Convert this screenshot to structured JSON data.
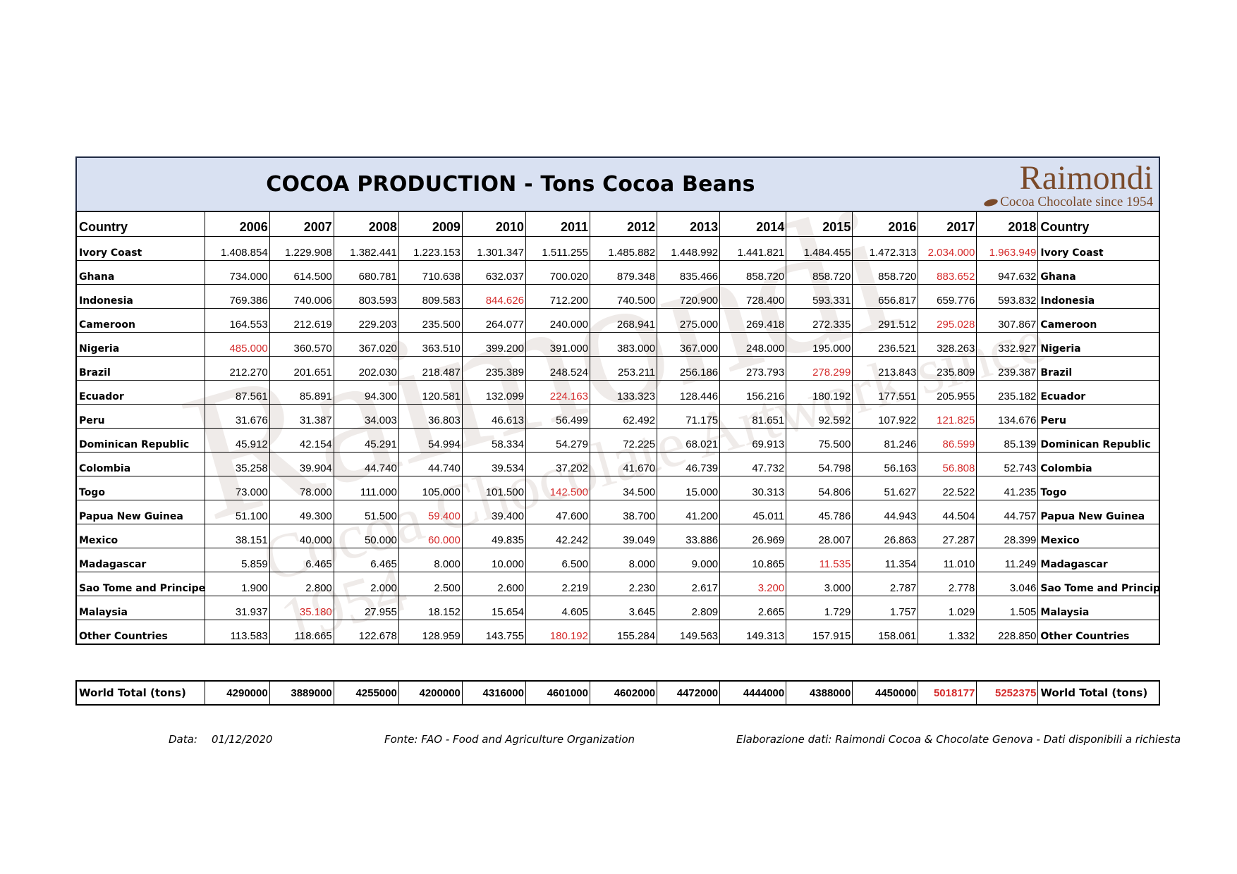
{
  "title": "COCOA PRODUCTION  - Tons Cocoa Beans",
  "logo": {
    "name": "Raimondi",
    "tagline": "Cocoa Chocolate since 1954"
  },
  "watermark": {
    "big": "Raimondi",
    "small": "Cocoa Chocolate Artwork since 1954"
  },
  "table": {
    "country_header": "Country",
    "years": [
      "2006",
      "2007",
      "2008",
      "2009",
      "2010",
      "2011",
      "2012",
      "2013",
      "2014",
      "2015",
      "2016",
      "2017",
      "2018"
    ],
    "rows": [
      {
        "country": "Ivory Coast",
        "values": [
          "1.408.854",
          "1.229.908",
          "1.382.441",
          "1.223.153",
          "1.301.347",
          "1.511.255",
          "1.485.882",
          "1.448.992",
          "1.441.821",
          "1.484.455",
          "1.472.313",
          "2.034.000",
          "1.963.949"
        ],
        "red": [
          11,
          12
        ]
      },
      {
        "country": "Ghana",
        "values": [
          "734.000",
          "614.500",
          "680.781",
          "710.638",
          "632.037",
          "700.020",
          "879.348",
          "835.466",
          "858.720",
          "858.720",
          "858.720",
          "883.652",
          "947.632"
        ],
        "red": [
          11
        ]
      },
      {
        "country": "Indonesia",
        "values": [
          "769.386",
          "740.006",
          "803.593",
          "809.583",
          "844.626",
          "712.200",
          "740.500",
          "720.900",
          "728.400",
          "593.331",
          "656.817",
          "659.776",
          "593.832"
        ],
        "red": [
          4
        ]
      },
      {
        "country": "Cameroon",
        "values": [
          "164.553",
          "212.619",
          "229.203",
          "235.500",
          "264.077",
          "240.000",
          "268.941",
          "275.000",
          "269.418",
          "272.335",
          "291.512",
          "295.028",
          "307.867"
        ],
        "red": [
          11
        ]
      },
      {
        "country": "Nigeria",
        "values": [
          "485.000",
          "360.570",
          "367.020",
          "363.510",
          "399.200",
          "391.000",
          "383.000",
          "367.000",
          "248.000",
          "195.000",
          "236.521",
          "328.263",
          "332.927"
        ],
        "red": [
          0
        ]
      },
      {
        "country": "Brazil",
        "values": [
          "212.270",
          "201.651",
          "202.030",
          "218.487",
          "235.389",
          "248.524",
          "253.211",
          "256.186",
          "273.793",
          "278.299",
          "213.843",
          "235.809",
          "239.387"
        ],
        "red": [
          9
        ]
      },
      {
        "country": "Ecuador",
        "values": [
          "87.561",
          "85.891",
          "94.300",
          "120.581",
          "132.099",
          "224.163",
          "133.323",
          "128.446",
          "156.216",
          "180.192",
          "177.551",
          "205.955",
          "235.182"
        ],
        "red": [
          5
        ]
      },
      {
        "country": "Peru",
        "values": [
          "31.676",
          "31.387",
          "34.003",
          "36.803",
          "46.613",
          "56.499",
          "62.492",
          "71.175",
          "81.651",
          "92.592",
          "107.922",
          "121.825",
          "134.676"
        ],
        "red": [
          11
        ]
      },
      {
        "country": "Dominican Republic",
        "values": [
          "45.912",
          "42.154",
          "45.291",
          "54.994",
          "58.334",
          "54.279",
          "72.225",
          "68.021",
          "69.913",
          "75.500",
          "81.246",
          "86.599",
          "85.139"
        ],
        "red": [
          11
        ]
      },
      {
        "country": "Colombia",
        "values": [
          "35.258",
          "39.904",
          "44.740",
          "44.740",
          "39.534",
          "37.202",
          "41.670",
          "46.739",
          "47.732",
          "54.798",
          "56.163",
          "56.808",
          "52.743"
        ],
        "red": [
          11
        ]
      },
      {
        "country": "Togo",
        "values": [
          "73.000",
          "78.000",
          "111.000",
          "105.000",
          "101.500",
          "142.500",
          "34.500",
          "15.000",
          "30.313",
          "54.806",
          "51.627",
          "22.522",
          "41.235"
        ],
        "red": [
          5
        ]
      },
      {
        "country": "Papua New Guinea",
        "values": [
          "51.100",
          "49.300",
          "51.500",
          "59.400",
          "39.400",
          "47.600",
          "38.700",
          "41.200",
          "45.011",
          "45.786",
          "44.943",
          "44.504",
          "44.757"
        ],
        "red": [
          3
        ]
      },
      {
        "country": "Mexico",
        "values": [
          "38.151",
          "40.000",
          "50.000",
          "60.000",
          "49.835",
          "42.242",
          "39.049",
          "33.886",
          "26.969",
          "28.007",
          "26.863",
          "27.287",
          "28.399"
        ],
        "red": [
          3
        ]
      },
      {
        "country": "Madagascar",
        "values": [
          "5.859",
          "6.465",
          "6.465",
          "8.000",
          "10.000",
          "6.500",
          "8.000",
          "9.000",
          "10.865",
          "11.535",
          "11.354",
          "11.010",
          "11.249"
        ],
        "red": [
          9
        ]
      },
      {
        "country": "Sao Tome and Principe",
        "values": [
          "1.900",
          "2.800",
          "2.000",
          "2.500",
          "2.600",
          "2.219",
          "2.230",
          "2.617",
          "3.200",
          "3.000",
          "2.787",
          "2.778",
          "3.046"
        ],
        "red": [
          8
        ]
      },
      {
        "country": "Malaysia",
        "values": [
          "31.937",
          "35.180",
          "27.955",
          "18.152",
          "15.654",
          "4.605",
          "3.645",
          "2.809",
          "2.665",
          "1.729",
          "1.757",
          "1.029",
          "1.505"
        ],
        "red": [
          1
        ]
      },
      {
        "country": "Other Countries",
        "values": [
          "113.583",
          "118.665",
          "122.678",
          "128.959",
          "143.755",
          "180.192",
          "155.284",
          "149.563",
          "149.313",
          "157.915",
          "158.061",
          "1.332",
          "228.850"
        ],
        "red": [
          5
        ]
      }
    ]
  },
  "total": {
    "label": "World Total (tons)",
    "values": [
      "4290000",
      "3889000",
      "4255000",
      "4200000",
      "4316000",
      "4601000",
      "4602000",
      "4472000",
      "4444000",
      "4388000",
      "4450000",
      "5018177",
      "5252375"
    ],
    "red": [
      11,
      12
    ]
  },
  "footer": {
    "data_label": "Data:",
    "date": "01/12/2020",
    "source": "Fonte: FAO - Food and Agriculture Organization",
    "credit": "Elaborazione dati: Raimondi Cocoa & Chocolate Genova - Dati disponibili a richiesta"
  },
  "colors": {
    "header_bg": "#d9e1f2",
    "highlight": "#d42a2a",
    "logo": "#7a4a2a"
  }
}
